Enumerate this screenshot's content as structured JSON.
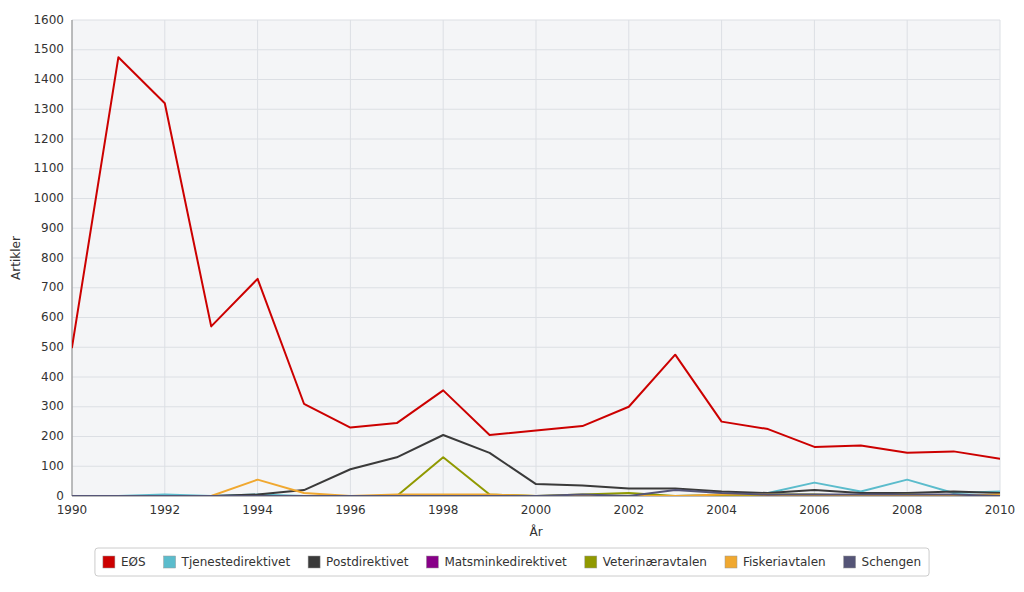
{
  "chart_data": {
    "type": "line",
    "x": [
      1990,
      1991,
      1992,
      1993,
      1994,
      1995,
      1996,
      1997,
      1998,
      1999,
      2000,
      2001,
      2002,
      2003,
      2004,
      2005,
      2006,
      2007,
      2008,
      2009,
      2010
    ],
    "series": [
      {
        "name": "EØS",
        "color": "#cc0000",
        "values": [
          500,
          1475,
          1320,
          570,
          730,
          310,
          230,
          245,
          355,
          205,
          220,
          235,
          300,
          475,
          250,
          225,
          165,
          170,
          145,
          150,
          125
        ]
      },
      {
        "name": "Tjenestedirektivet",
        "color": "#5bbccc",
        "values": [
          0,
          0,
          5,
          0,
          5,
          0,
          0,
          0,
          0,
          0,
          0,
          0,
          0,
          0,
          5,
          10,
          45,
          15,
          55,
          10,
          15
        ]
      },
      {
        "name": "Postdirektivet",
        "color": "#3a3a3a",
        "values": [
          0,
          0,
          0,
          0,
          5,
          20,
          90,
          130,
          205,
          145,
          40,
          35,
          25,
          25,
          15,
          10,
          20,
          10,
          10,
          15,
          10
        ]
      },
      {
        "name": "Matsminkedirektivet",
        "color": "#880088",
        "values": [
          0,
          0,
          0,
          0,
          0,
          0,
          0,
          0,
          0,
          0,
          0,
          0,
          0,
          0,
          0,
          0,
          0,
          0,
          0,
          0,
          0
        ]
      },
      {
        "name": "Veterinæravtalen",
        "color": "#909900",
        "values": [
          0,
          0,
          0,
          0,
          0,
          0,
          0,
          0,
          130,
          5,
          0,
          5,
          10,
          0,
          0,
          5,
          5,
          0,
          5,
          0,
          0
        ]
      },
      {
        "name": "Fiskeriavtalen",
        "color": "#f0a830",
        "values": [
          0,
          0,
          0,
          0,
          55,
          10,
          0,
          5,
          5,
          5,
          0,
          0,
          0,
          0,
          5,
          5,
          0,
          0,
          0,
          0,
          5
        ]
      },
      {
        "name": "Schengen",
        "color": "#555577",
        "values": [
          0,
          0,
          0,
          0,
          0,
          0,
          0,
          0,
          0,
          0,
          0,
          5,
          0,
          20,
          10,
          5,
          5,
          5,
          5,
          5,
          0
        ]
      }
    ],
    "xlabel": "År",
    "ylabel": "Artikler",
    "xlim": [
      1990,
      2010
    ],
    "ylim": [
      0,
      1600
    ],
    "xticks": [
      1990,
      1992,
      1994,
      1996,
      1998,
      2000,
      2002,
      2004,
      2006,
      2008,
      2010
    ],
    "yticks": [
      0,
      100,
      200,
      300,
      400,
      500,
      600,
      700,
      800,
      900,
      1000,
      1100,
      1200,
      1300,
      1400,
      1500,
      1600
    ],
    "grid": true,
    "legend": "bottom"
  }
}
